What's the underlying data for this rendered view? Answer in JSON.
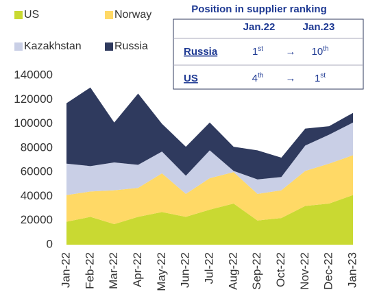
{
  "chart_data": {
    "type": "stacked_area",
    "categories": [
      "Jan-22",
      "Feb-22",
      "Mar-22",
      "Apr-22",
      "May-22",
      "Jun-22",
      "Jul-22",
      "Aug-22",
      "Sep-22",
      "Oct-22",
      "Nov-22",
      "Dec-22",
      "Jan-23"
    ],
    "series": [
      {
        "name": "US",
        "color": "#c9d932",
        "values": [
          19000,
          23000,
          17000,
          23000,
          27000,
          23000,
          29000,
          34000,
          20000,
          22000,
          32000,
          34000,
          41000
        ]
      },
      {
        "name": "Norway",
        "color": "#ffd966",
        "values": [
          22000,
          21000,
          28000,
          24000,
          32000,
          19000,
          26000,
          26000,
          22000,
          23000,
          29000,
          33000,
          33000
        ]
      },
      {
        "name": "Kazakhstan",
        "color": "#c9cfe6",
        "values": [
          26000,
          21000,
          23000,
          19000,
          18000,
          15000,
          23000,
          1000,
          12000,
          11000,
          21000,
          24000,
          27000
        ]
      },
      {
        "name": "Russia",
        "color": "#2f3a5e",
        "values": [
          50000,
          65000,
          33000,
          59000,
          23000,
          24000,
          23000,
          20000,
          24000,
          16000,
          14000,
          7000,
          8000
        ]
      }
    ],
    "ylim": [
      0,
      140000
    ],
    "yticks": [
      0,
      20000,
      40000,
      60000,
      80000,
      100000,
      120000,
      140000
    ],
    "inset": {
      "title": "Position in supplier ranking",
      "columns": [
        "Jan.22",
        "Jan.23"
      ],
      "rows": [
        {
          "name": "Russia",
          "from": "1",
          "from_suffix": "st",
          "arrow": "→",
          "to": "10",
          "to_suffix": "th"
        },
        {
          "name": "US",
          "from": "4",
          "from_suffix": "th",
          "arrow": "→",
          "to": "1",
          "to_suffix": "st"
        }
      ]
    }
  }
}
